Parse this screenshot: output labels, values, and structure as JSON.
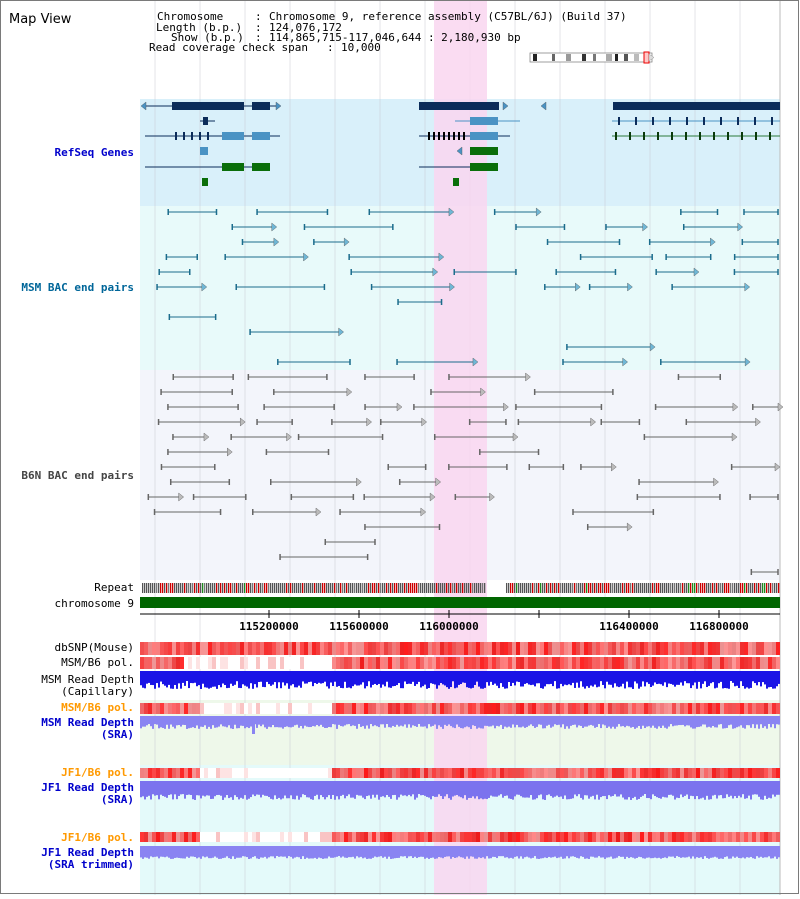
{
  "title": "Map View",
  "info": {
    "keys": [
      "Chromosome",
      "Length (b.p.)",
      "Show (b.p.)",
      "Read coverage check span"
    ],
    "values": [
      "Chromosome 9, reference assembly (C57BL/6J) (Build 37)",
      "124,076,172",
      "114,865,715-117,046,644 : 2,180,930 bp",
      "10,000"
    ]
  },
  "tracks": {
    "refseq": "RefSeq Genes",
    "msm_bac": "MSM BAC end pairs",
    "b6n_bac": "B6N BAC end pairs",
    "repeat": "Repeat",
    "chromosome": "chromosome 9",
    "dbsnp": "dbSNP(Mouse)",
    "msm_pol": "MSM/B6 pol.",
    "msm_depth_cap": [
      "MSM Read Depth",
      "(Capillary)"
    ],
    "msm_pol2": "MSM/B6 pol.",
    "msm_depth_sra": [
      "MSM Read Depth",
      "(SRA)"
    ],
    "jf1_pol": "JF1/B6 pol.",
    "jf1_depth_sra": [
      "JF1 Read Depth",
      "(SRA)"
    ],
    "jf1_pol2": "JF1/B6 pol.",
    "jf1_depth_trim": [
      "JF1 Read Depth",
      "(SRA trimmed)"
    ]
  },
  "ruler": {
    "ticks": [
      "115200000",
      "115600000",
      "116000000",
      "116400000",
      "116800000"
    ]
  },
  "colors": {
    "refseq_label": "#0000cc",
    "msm_label": "#006699",
    "b6n_label": "#444444",
    "pol_orange": "#ff9900",
    "depth_blue": "#0000cc",
    "highlight": "#f9d6f0"
  }
}
